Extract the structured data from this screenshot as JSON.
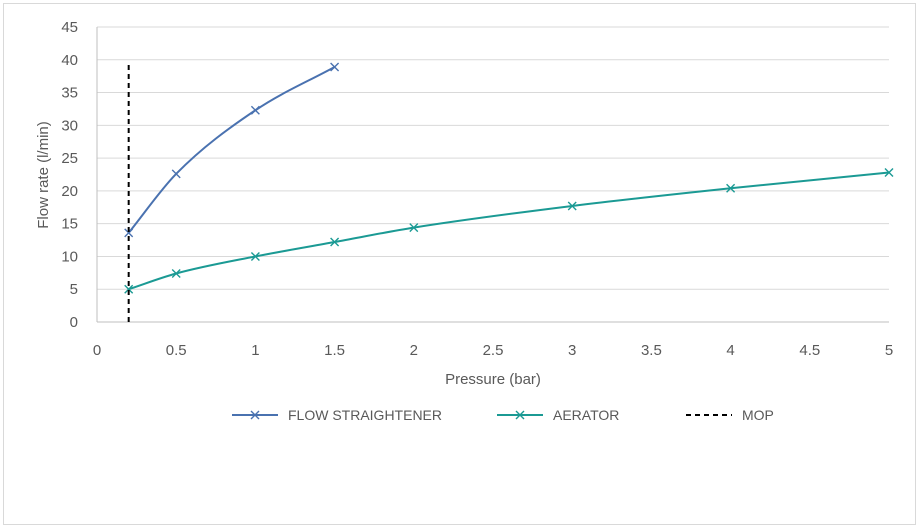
{
  "chart_data": {
    "type": "line",
    "title": "",
    "xlabel": "Pressure (bar)",
    "ylabel": "Flow rate (l/min)",
    "xlim": [
      0,
      5
    ],
    "ylim": [
      0,
      45
    ],
    "xticks": [
      "0",
      "0.5",
      "1",
      "1.5",
      "2",
      "2.5",
      "3",
      "3.5",
      "4",
      "4.5",
      "5"
    ],
    "yticks": [
      "0",
      "5",
      "10",
      "15",
      "20",
      "25",
      "30",
      "35",
      "40",
      "45"
    ],
    "grid": true,
    "legend_position": "bottom",
    "series": [
      {
        "name": "FLOW STRAIGHTENER",
        "color": "#4a72b0",
        "marker": "x",
        "x": [
          0.2,
          0.5,
          1,
          1.5
        ],
        "y": [
          13.6,
          22.6,
          32.3,
          38.9
        ]
      },
      {
        "name": "AERATOR",
        "color": "#1b9a94",
        "marker": "x",
        "x": [
          0.2,
          0.5,
          1,
          1.5,
          2,
          3,
          4,
          5
        ],
        "y": [
          5.0,
          7.4,
          10.0,
          12.2,
          14.4,
          17.7,
          20.4,
          22.8
        ]
      },
      {
        "name": "MOP",
        "color": "#000000",
        "style": "dashed",
        "x": [
          0.2,
          0.2
        ],
        "y": [
          0,
          39.5
        ]
      }
    ]
  }
}
